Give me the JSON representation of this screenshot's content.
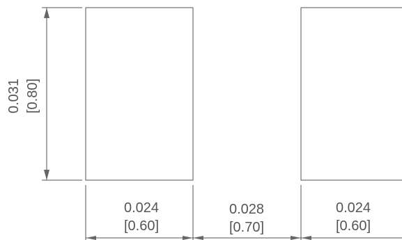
{
  "dimensions": {
    "height": {
      "inch": "0.031",
      "mm": "[0.80]"
    },
    "pad_width_left": {
      "inch": "0.024",
      "mm": "[0.60]"
    },
    "gap": {
      "inch": "0.028",
      "mm": "[0.70]"
    },
    "pad_width_right": {
      "inch": "0.024",
      "mm": "[0.60]"
    }
  },
  "colors": {
    "line": "#555555",
    "text": "#555555"
  }
}
